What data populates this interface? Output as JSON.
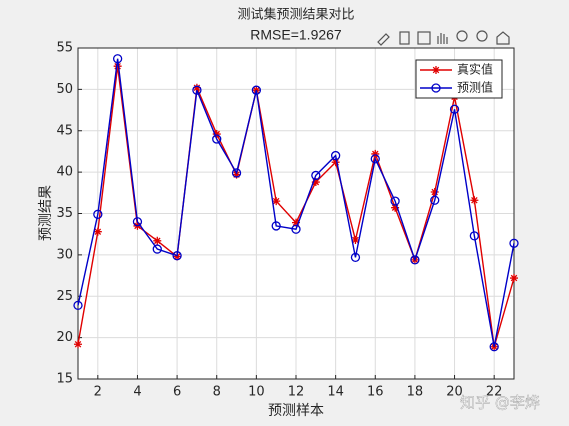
{
  "chart_data": {
    "type": "line",
    "title": "测试集预测结果对比",
    "subtitle": "RMSE=1.9267",
    "x_label": "预测样本",
    "y_label": "预测结果",
    "x": [
      1,
      2,
      3,
      4,
      5,
      6,
      7,
      8,
      9,
      10,
      11,
      12,
      13,
      14,
      15,
      16,
      17,
      18,
      19,
      20,
      21,
      22,
      23
    ],
    "series": [
      {
        "name": "真实值",
        "color": "#e00000",
        "marker": "star",
        "values": [
          19.2,
          32.8,
          52.8,
          33.5,
          31.7,
          29.8,
          50.2,
          44.6,
          39.7,
          49.9,
          36.5,
          33.9,
          38.8,
          41.2,
          31.8,
          42.2,
          35.7,
          29.4,
          37.6,
          49.1,
          36.6,
          18.9,
          27.2
        ]
      },
      {
        "name": "预测值",
        "color": "#0000c8",
        "marker": "circle",
        "values": [
          23.9,
          34.9,
          53.7,
          34.0,
          30.7,
          29.9,
          49.9,
          44.0,
          39.9,
          49.9,
          33.5,
          33.1,
          39.6,
          42.0,
          29.7,
          41.6,
          36.5,
          29.4,
          36.6,
          47.6,
          32.3,
          18.9,
          31.4
        ]
      }
    ],
    "xlim": [
      1,
      23
    ],
    "xticks": [
      2,
      4,
      6,
      8,
      10,
      12,
      14,
      16,
      18,
      20,
      22
    ],
    "ylim": [
      15,
      55
    ],
    "yticks": [
      15,
      20,
      25,
      30,
      35,
      40,
      45,
      50,
      55
    ],
    "grid": true,
    "legend": "upper right",
    "watermark": "知乎 @李烨"
  }
}
